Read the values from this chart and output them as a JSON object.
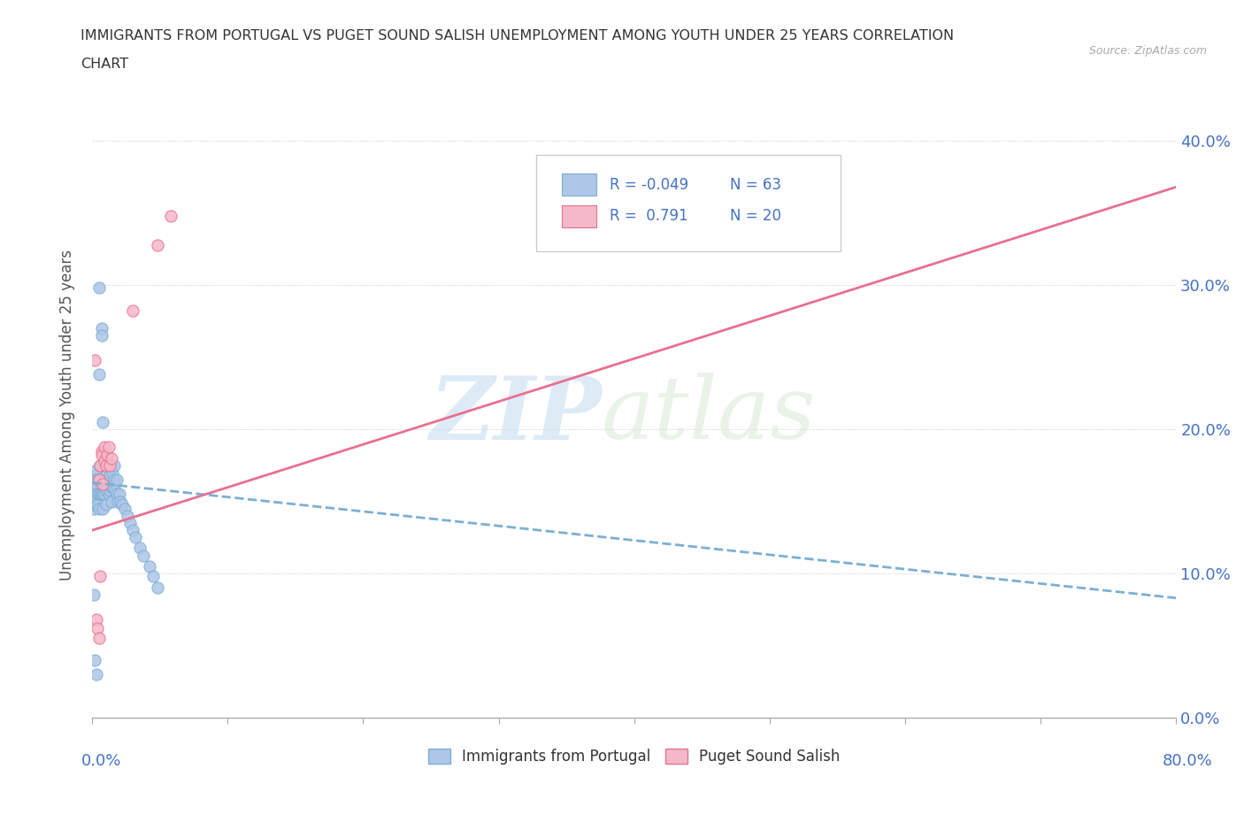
{
  "title_line1": "IMMIGRANTS FROM PORTUGAL VS PUGET SOUND SALISH UNEMPLOYMENT AMONG YOUTH UNDER 25 YEARS CORRELATION",
  "title_line2": "CHART",
  "source": "Source: ZipAtlas.com",
  "ylabel": "Unemployment Among Youth under 25 years",
  "xlim": [
    0.0,
    0.8
  ],
  "ylim": [
    0.0,
    0.42
  ],
  "xtick_positions": [
    0.0,
    0.1,
    0.2,
    0.3,
    0.4,
    0.5,
    0.6,
    0.7,
    0.8
  ],
  "ytick_positions": [
    0.0,
    0.1,
    0.2,
    0.3,
    0.4
  ],
  "blue_color": "#aec6e8",
  "blue_edge": "#7bafd4",
  "pink_color": "#f5b8c8",
  "pink_edge": "#e87090",
  "trend_blue_color": "#7bafd4",
  "trend_pink_color": "#e87090",
  "R_blue": -0.049,
  "N_blue": 63,
  "R_pink": 0.791,
  "N_pink": 20,
  "blue_scatter_x": [
    0.001,
    0.001,
    0.001,
    0.002,
    0.002,
    0.002,
    0.003,
    0.003,
    0.003,
    0.004,
    0.004,
    0.004,
    0.005,
    0.005,
    0.005,
    0.005,
    0.006,
    0.006,
    0.006,
    0.007,
    0.007,
    0.007,
    0.008,
    0.008,
    0.008,
    0.009,
    0.009,
    0.009,
    0.01,
    0.01,
    0.01,
    0.011,
    0.011,
    0.012,
    0.012,
    0.013,
    0.013,
    0.014,
    0.014,
    0.015,
    0.015,
    0.016,
    0.016,
    0.017,
    0.018,
    0.018,
    0.019,
    0.02,
    0.021,
    0.022,
    0.024,
    0.026,
    0.028,
    0.03,
    0.032,
    0.035,
    0.038,
    0.042,
    0.045,
    0.048,
    0.001,
    0.002,
    0.003
  ],
  "blue_scatter_y": [
    0.155,
    0.145,
    0.165,
    0.158,
    0.148,
    0.168,
    0.152,
    0.162,
    0.172,
    0.148,
    0.155,
    0.165,
    0.238,
    0.298,
    0.155,
    0.145,
    0.165,
    0.175,
    0.155,
    0.27,
    0.265,
    0.155,
    0.205,
    0.155,
    0.145,
    0.175,
    0.165,
    0.155,
    0.168,
    0.158,
    0.148,
    0.162,
    0.178,
    0.165,
    0.155,
    0.168,
    0.158,
    0.16,
    0.15,
    0.17,
    0.16,
    0.175,
    0.165,
    0.158,
    0.165,
    0.155,
    0.15,
    0.155,
    0.15,
    0.148,
    0.145,
    0.14,
    0.135,
    0.13,
    0.125,
    0.118,
    0.112,
    0.105,
    0.098,
    0.09,
    0.085,
    0.04,
    0.03
  ],
  "pink_scatter_x": [
    0.002,
    0.003,
    0.004,
    0.005,
    0.005,
    0.006,
    0.006,
    0.007,
    0.007,
    0.008,
    0.009,
    0.009,
    0.01,
    0.011,
    0.012,
    0.013,
    0.014,
    0.03,
    0.048,
    0.058
  ],
  "pink_scatter_y": [
    0.248,
    0.068,
    0.062,
    0.165,
    0.055,
    0.175,
    0.098,
    0.185,
    0.182,
    0.162,
    0.178,
    0.188,
    0.175,
    0.182,
    0.188,
    0.175,
    0.18,
    0.282,
    0.328,
    0.348
  ],
  "watermark_zip": "ZIP",
  "watermark_atlas": "atlas",
  "blue_trend_x": [
    0.0,
    0.8
  ],
  "blue_trend_y": [
    0.163,
    0.083
  ],
  "pink_trend_x": [
    0.0,
    0.8
  ],
  "pink_trend_y": [
    0.13,
    0.368
  ],
  "legend_label_blue": "Immigrants from Portugal",
  "legend_label_pink": "Puget Sound Salish"
}
